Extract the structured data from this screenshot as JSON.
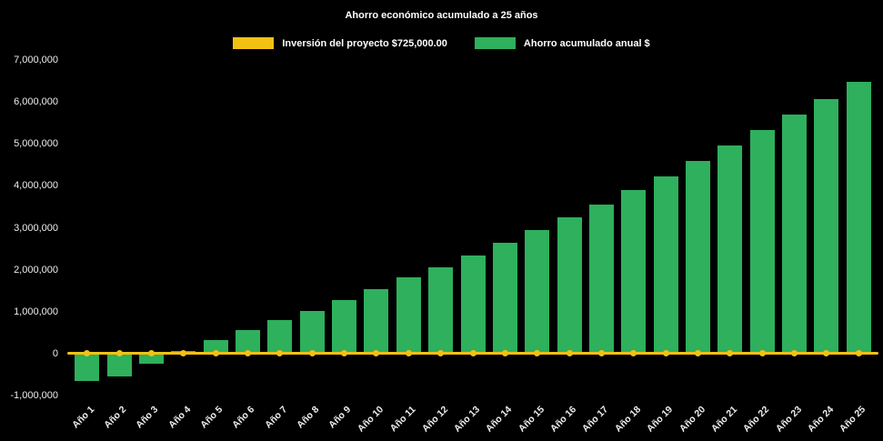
{
  "chart_data": {
    "type": "bar",
    "title": "Ahorro económico acumulado a 25 años",
    "background_color": "#000000",
    "text_color": "#ffffff",
    "grid": false,
    "legend_position": "top-center",
    "categories": [
      "Año 1",
      "Año 2",
      "Año 3",
      "Año 4",
      "Año 5",
      "Año 6",
      "Año 7",
      "Año 8",
      "Año 9",
      "Año 10",
      "Año 11",
      "Año 12",
      "Año 13",
      "Año 14",
      "Año 15",
      "Año 16",
      "Año 17",
      "Año 18",
      "Año 19",
      "Año 20",
      "Año 21",
      "Año 22",
      "Año 23",
      "Año 24",
      "Año 25"
    ],
    "series": [
      {
        "name": "Inversión del proyecto $725,000.00",
        "type": "line",
        "color": "#f2c114",
        "marker": "circle",
        "values": [
          0,
          0,
          0,
          0,
          0,
          0,
          0,
          0,
          0,
          0,
          0,
          0,
          0,
          0,
          0,
          0,
          0,
          0,
          0,
          0,
          0,
          0,
          0,
          0,
          0
        ]
      },
      {
        "name": "Ahorro acumulado anual $",
        "type": "bar",
        "color": "#2eb05c",
        "values": [
          -650000,
          -550000,
          -250000,
          60000,
          320000,
          560000,
          800000,
          1020000,
          1280000,
          1540000,
          1820000,
          2060000,
          2340000,
          2650000,
          2950000,
          3250000,
          3560000,
          3900000,
          4230000,
          4600000,
          4970000,
          5330000,
          5700000,
          6070000,
          6480000
        ]
      }
    ],
    "ylim": [
      -1000000,
      7000000
    ],
    "yticks": [
      -1000000,
      0,
      1000000,
      2000000,
      3000000,
      4000000,
      5000000,
      6000000,
      7000000
    ],
    "ytick_labels": [
      "-1,000,000",
      "0",
      "1,000,000",
      "2,000,000",
      "3,000,000",
      "4,000,000",
      "5,000,000",
      "6,000,000",
      "7,000,000"
    ]
  }
}
